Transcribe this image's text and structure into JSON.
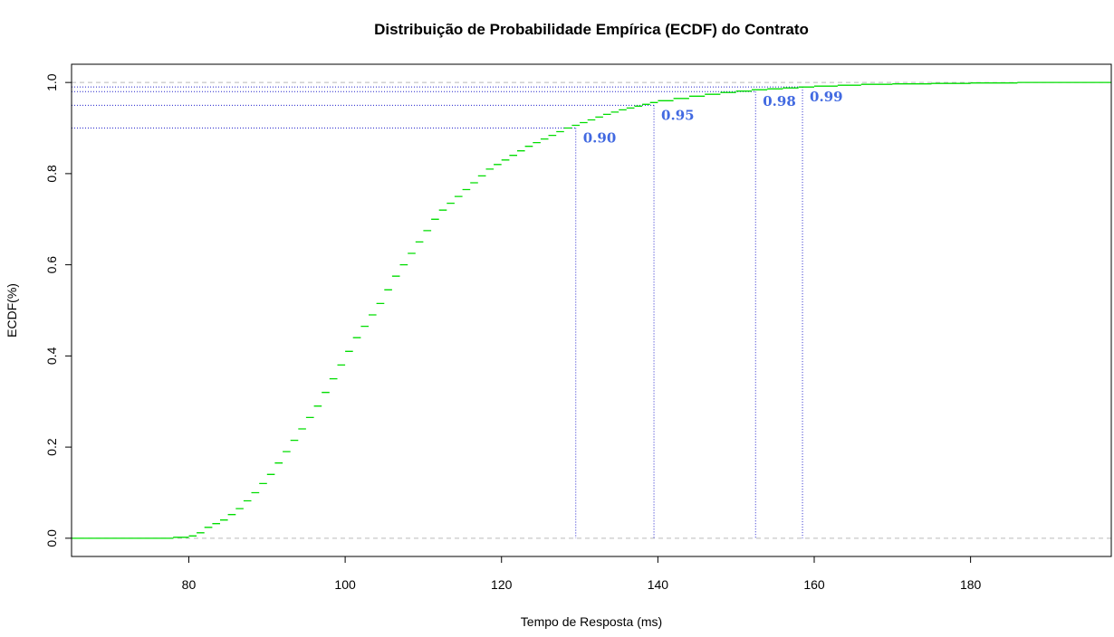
{
  "chart_data": {
    "type": "line",
    "step": true,
    "title": "Distribuição de Probabilidade Empírica (ECDF) do Contrato",
    "xlabel": "Tempo de Resposta (ms)",
    "ylabel": "ECDF(%)",
    "xlim": [
      65,
      198
    ],
    "ylim": [
      -0.04,
      1.04
    ],
    "x_ticks": [
      "80",
      "100",
      "120",
      "140",
      "160",
      "180"
    ],
    "x_tick_values": [
      80,
      100,
      120,
      140,
      160,
      180
    ],
    "y_ticks": [
      "0.0",
      "0.2",
      "0.4",
      "0.6",
      "0.8",
      "1.0"
    ],
    "y_tick_values": [
      0,
      0.2,
      0.4,
      0.6,
      0.8,
      1.0
    ],
    "grid": false,
    "reference_lines": [
      0,
      1
    ],
    "series": [
      {
        "color": "#00dd00",
        "x": [
          65,
          78,
          80,
          81,
          82,
          83,
          84,
          85,
          86,
          87,
          88,
          89,
          90,
          91,
          92,
          93,
          94,
          95,
          96,
          97,
          98,
          99,
          100,
          101,
          102,
          103,
          104,
          105,
          106,
          107,
          108,
          109,
          110,
          111,
          112,
          113,
          114,
          115,
          116,
          117,
          118,
          119,
          120,
          121,
          122,
          123,
          124,
          125,
          126,
          127,
          128,
          129,
          130,
          131,
          132,
          133,
          134,
          135,
          136,
          137,
          138,
          139,
          140,
          142,
          144,
          146,
          148,
          150,
          152,
          154,
          156,
          158,
          160,
          163,
          166,
          170,
          175,
          180,
          186,
          190,
          198
        ],
        "y": [
          0.0,
          0.002,
          0.005,
          0.012,
          0.024,
          0.032,
          0.04,
          0.052,
          0.065,
          0.082,
          0.1,
          0.12,
          0.14,
          0.165,
          0.19,
          0.215,
          0.24,
          0.265,
          0.29,
          0.32,
          0.35,
          0.38,
          0.41,
          0.44,
          0.465,
          0.49,
          0.515,
          0.545,
          0.575,
          0.6,
          0.625,
          0.65,
          0.675,
          0.7,
          0.72,
          0.735,
          0.75,
          0.765,
          0.78,
          0.795,
          0.81,
          0.82,
          0.83,
          0.84,
          0.85,
          0.86,
          0.868,
          0.876,
          0.884,
          0.892,
          0.9,
          0.906,
          0.912,
          0.918,
          0.924,
          0.93,
          0.935,
          0.94,
          0.944,
          0.948,
          0.952,
          0.956,
          0.96,
          0.965,
          0.97,
          0.974,
          0.978,
          0.981,
          0.984,
          0.986,
          0.988,
          0.99,
          0.992,
          0.994,
          0.996,
          0.997,
          0.998,
          0.999,
          1.0,
          1.0,
          1.0
        ]
      }
    ],
    "quantiles": [
      {
        "label": "0.90",
        "p": 0.9,
        "x": 129.5
      },
      {
        "label": "0.95",
        "p": 0.95,
        "x": 139.5
      },
      {
        "label": "0.98",
        "p": 0.98,
        "x": 152.5
      },
      {
        "label": "0.99",
        "p": 0.99,
        "x": 158.5
      }
    ],
    "colors": {
      "ecdf": "#00dd00",
      "quantile_lines": "#2222cc",
      "quantile_labels": "#4169e1",
      "reference_lines": "#bbbbbb"
    }
  }
}
